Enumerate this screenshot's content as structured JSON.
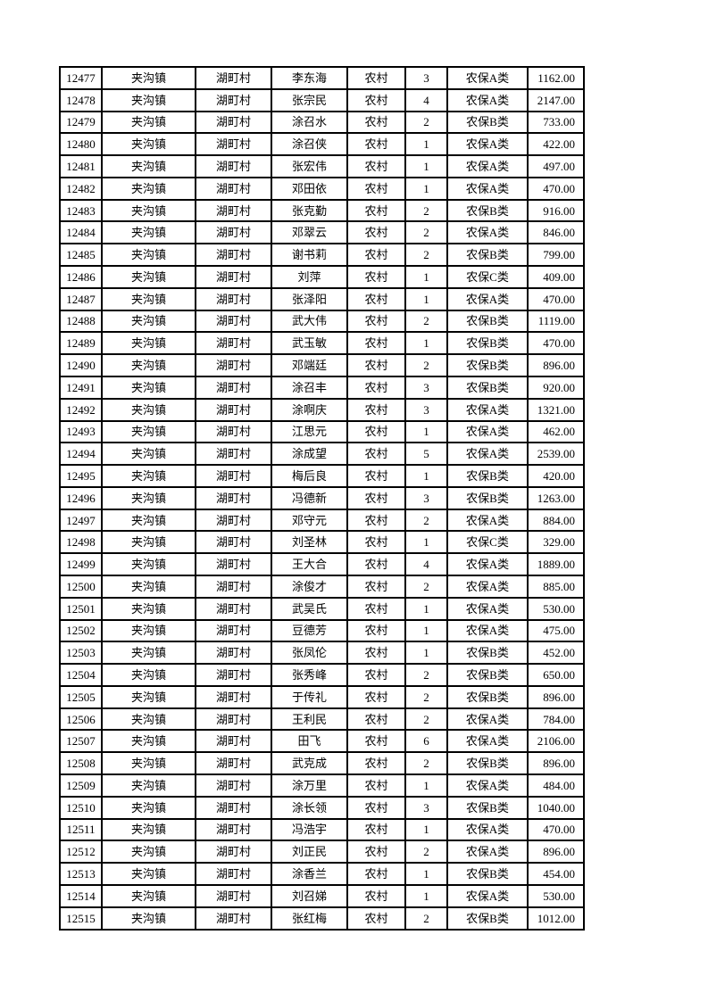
{
  "page": {
    "background_color": "#ffffff",
    "border_color": "#000000",
    "text_color": "#000000"
  },
  "table": {
    "row_count": 39,
    "rows": [
      [
        "12477",
        "夹沟镇",
        "湖町村",
        "李东海",
        "农村",
        "3",
        "农保A类",
        "1162.00"
      ],
      [
        "12478",
        "夹沟镇",
        "湖町村",
        "张宗民",
        "农村",
        "4",
        "农保A类",
        "2147.00"
      ],
      [
        "12479",
        "夹沟镇",
        "湖町村",
        "涂召水",
        "农村",
        "2",
        "农保B类",
        "733.00"
      ],
      [
        "12480",
        "夹沟镇",
        "湖町村",
        "涂召侠",
        "农村",
        "1",
        "农保A类",
        "422.00"
      ],
      [
        "12481",
        "夹沟镇",
        "湖町村",
        "张宏伟",
        "农村",
        "1",
        "农保A类",
        "497.00"
      ],
      [
        "12482",
        "夹沟镇",
        "湖町村",
        "邓田依",
        "农村",
        "1",
        "农保A类",
        "470.00"
      ],
      [
        "12483",
        "夹沟镇",
        "湖町村",
        "张克勤",
        "农村",
        "2",
        "农保B类",
        "916.00"
      ],
      [
        "12484",
        "夹沟镇",
        "湖町村",
        "邓翠云",
        "农村",
        "2",
        "农保A类",
        "846.00"
      ],
      [
        "12485",
        "夹沟镇",
        "湖町村",
        "谢书莉",
        "农村",
        "2",
        "农保B类",
        "799.00"
      ],
      [
        "12486",
        "夹沟镇",
        "湖町村",
        "刘萍",
        "农村",
        "1",
        "农保C类",
        "409.00"
      ],
      [
        "12487",
        "夹沟镇",
        "湖町村",
        "张泽阳",
        "农村",
        "1",
        "农保A类",
        "470.00"
      ],
      [
        "12488",
        "夹沟镇",
        "湖町村",
        "武大伟",
        "农村",
        "2",
        "农保B类",
        "1119.00"
      ],
      [
        "12489",
        "夹沟镇",
        "湖町村",
        "武玉敏",
        "农村",
        "1",
        "农保B类",
        "470.00"
      ],
      [
        "12490",
        "夹沟镇",
        "湖町村",
        "邓端廷",
        "农村",
        "2",
        "农保B类",
        "896.00"
      ],
      [
        "12491",
        "夹沟镇",
        "湖町村",
        "涂召丰",
        "农村",
        "3",
        "农保B类",
        "920.00"
      ],
      [
        "12492",
        "夹沟镇",
        "湖町村",
        "涂啊庆",
        "农村",
        "3",
        "农保A类",
        "1321.00"
      ],
      [
        "12493",
        "夹沟镇",
        "湖町村",
        "江思元",
        "农村",
        "1",
        "农保A类",
        "462.00"
      ],
      [
        "12494",
        "夹沟镇",
        "湖町村",
        "涂成望",
        "农村",
        "5",
        "农保A类",
        "2539.00"
      ],
      [
        "12495",
        "夹沟镇",
        "湖町村",
        "梅后良",
        "农村",
        "1",
        "农保B类",
        "420.00"
      ],
      [
        "12496",
        "夹沟镇",
        "湖町村",
        "冯德新",
        "农村",
        "3",
        "农保B类",
        "1263.00"
      ],
      [
        "12497",
        "夹沟镇",
        "湖町村",
        "邓守元",
        "农村",
        "2",
        "农保A类",
        "884.00"
      ],
      [
        "12498",
        "夹沟镇",
        "湖町村",
        "刘圣林",
        "农村",
        "1",
        "农保C类",
        "329.00"
      ],
      [
        "12499",
        "夹沟镇",
        "湖町村",
        "王大合",
        "农村",
        "4",
        "农保A类",
        "1889.00"
      ],
      [
        "12500",
        "夹沟镇",
        "湖町村",
        "涂俊才",
        "农村",
        "2",
        "农保A类",
        "885.00"
      ],
      [
        "12501",
        "夹沟镇",
        "湖町村",
        "武吴氏",
        "农村",
        "1",
        "农保A类",
        "530.00"
      ],
      [
        "12502",
        "夹沟镇",
        "湖町村",
        "豆德芳",
        "农村",
        "1",
        "农保A类",
        "475.00"
      ],
      [
        "12503",
        "夹沟镇",
        "湖町村",
        "张凤伦",
        "农村",
        "1",
        "农保B类",
        "452.00"
      ],
      [
        "12504",
        "夹沟镇",
        "湖町村",
        "张秀峰",
        "农村",
        "2",
        "农保B类",
        "650.00"
      ],
      [
        "12505",
        "夹沟镇",
        "湖町村",
        "于传礼",
        "农村",
        "2",
        "农保B类",
        "896.00"
      ],
      [
        "12506",
        "夹沟镇",
        "湖町村",
        "王利民",
        "农村",
        "2",
        "农保A类",
        "784.00"
      ],
      [
        "12507",
        "夹沟镇",
        "湖町村",
        "田飞",
        "农村",
        "6",
        "农保A类",
        "2106.00"
      ],
      [
        "12508",
        "夹沟镇",
        "湖町村",
        "武克成",
        "农村",
        "2",
        "农保B类",
        "896.00"
      ],
      [
        "12509",
        "夹沟镇",
        "湖町村",
        "涂万里",
        "农村",
        "1",
        "农保A类",
        "484.00"
      ],
      [
        "12510",
        "夹沟镇",
        "湖町村",
        "涂长领",
        "农村",
        "3",
        "农保B类",
        "1040.00"
      ],
      [
        "12511",
        "夹沟镇",
        "湖町村",
        "冯浩宇",
        "农村",
        "1",
        "农保A类",
        "470.00"
      ],
      [
        "12512",
        "夹沟镇",
        "湖町村",
        "刘正民",
        "农村",
        "2",
        "农保A类",
        "896.00"
      ],
      [
        "12513",
        "夹沟镇",
        "湖町村",
        "涂香兰",
        "农村",
        "1",
        "农保B类",
        "454.00"
      ],
      [
        "12514",
        "夹沟镇",
        "湖町村",
        "刘召娣",
        "农村",
        "1",
        "农保A类",
        "530.00"
      ],
      [
        "12515",
        "夹沟镇",
        "湖町村",
        "张红梅",
        "农村",
        "2",
        "农保B类",
        "1012.00"
      ]
    ]
  }
}
